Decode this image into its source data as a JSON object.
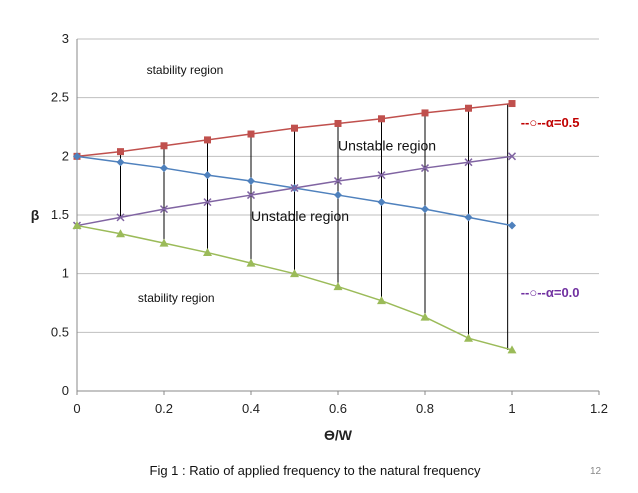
{
  "chart_data": {
    "type": "line",
    "xlabel": "ϴ/W",
    "ylabel": "β",
    "xlim": [
      0,
      1.2
    ],
    "ylim": [
      0,
      3
    ],
    "x_ticks": [
      "0",
      "0.2",
      "0.4",
      "0.6",
      "0.8",
      "1",
      "1.2"
    ],
    "y_ticks": [
      "0",
      "0.5",
      "1",
      "1.5",
      "2",
      "2.5",
      "3"
    ],
    "grid": "horizontal",
    "x": [
      0,
      0.1,
      0.2,
      0.3,
      0.4,
      0.5,
      0.6,
      0.7,
      0.8,
      0.9,
      1.0
    ],
    "series": [
      {
        "color": "#c0504d",
        "marker": "square",
        "values": [
          2.0,
          2.04,
          2.09,
          2.14,
          2.19,
          2.24,
          2.28,
          2.32,
          2.37,
          2.41,
          2.45
        ]
      },
      {
        "color": "#4f81bd",
        "marker": "diamond",
        "values": [
          2.0,
          1.95,
          1.9,
          1.84,
          1.79,
          1.73,
          1.67,
          1.61,
          1.55,
          1.48,
          1.41
        ]
      },
      {
        "color": "#8064a2",
        "marker": "x",
        "values": [
          1.41,
          1.48,
          1.55,
          1.61,
          1.67,
          1.73,
          1.79,
          1.84,
          1.9,
          1.95,
          2.0
        ]
      },
      {
        "color": "#9bbb59",
        "marker": "triangle",
        "values": [
          1.41,
          1.34,
          1.26,
          1.18,
          1.09,
          1.0,
          0.89,
          0.77,
          0.63,
          0.45,
          0.35
        ]
      }
    ],
    "vertical_lines": [
      {
        "x": 0.1,
        "y_top": 2.04,
        "y_bottom": 1.48
      },
      {
        "x": 0.2,
        "y_top": 2.09,
        "y_bottom": 1.26
      },
      {
        "x": 0.3,
        "y_top": 2.14,
        "y_bottom": 1.18
      },
      {
        "x": 0.4,
        "y_top": 2.19,
        "y_bottom": 1.09
      },
      {
        "x": 0.5,
        "y_top": 2.24,
        "y_bottom": 1.0
      },
      {
        "x": 0.6,
        "y_top": 2.28,
        "y_bottom": 0.89
      },
      {
        "x": 0.7,
        "y_top": 2.32,
        "y_bottom": 0.77
      },
      {
        "x": 0.8,
        "y_top": 2.37,
        "y_bottom": 0.63
      },
      {
        "x": 0.9,
        "y_top": 2.41,
        "y_bottom": 0.45
      },
      {
        "x": 0.99,
        "y_top": 2.45,
        "y_bottom": 0.35
      }
    ],
    "region_labels": [
      {
        "text": "stability region",
        "x": 0.16,
        "y": 2.7,
        "size": "normal"
      },
      {
        "text": "Unstable region",
        "x": 0.6,
        "y": 2.05,
        "size": "large"
      },
      {
        "text": "Unstable region",
        "x": 0.4,
        "y": 1.45,
        "size": "large"
      },
      {
        "text": "stability region",
        "x": 0.14,
        "y": 0.76,
        "size": "normal"
      }
    ],
    "annotations": [
      {
        "text": "--○--α=0.5",
        "color": "#c00000",
        "x": 1.02,
        "y": 2.25
      },
      {
        "text": "--○--α=0.0",
        "color": "#7030a0",
        "x": 1.02,
        "y": 0.8
      }
    ]
  },
  "caption": "Fig 1 : Ratio of applied frequency to the natural frequency",
  "slide_number": "12"
}
